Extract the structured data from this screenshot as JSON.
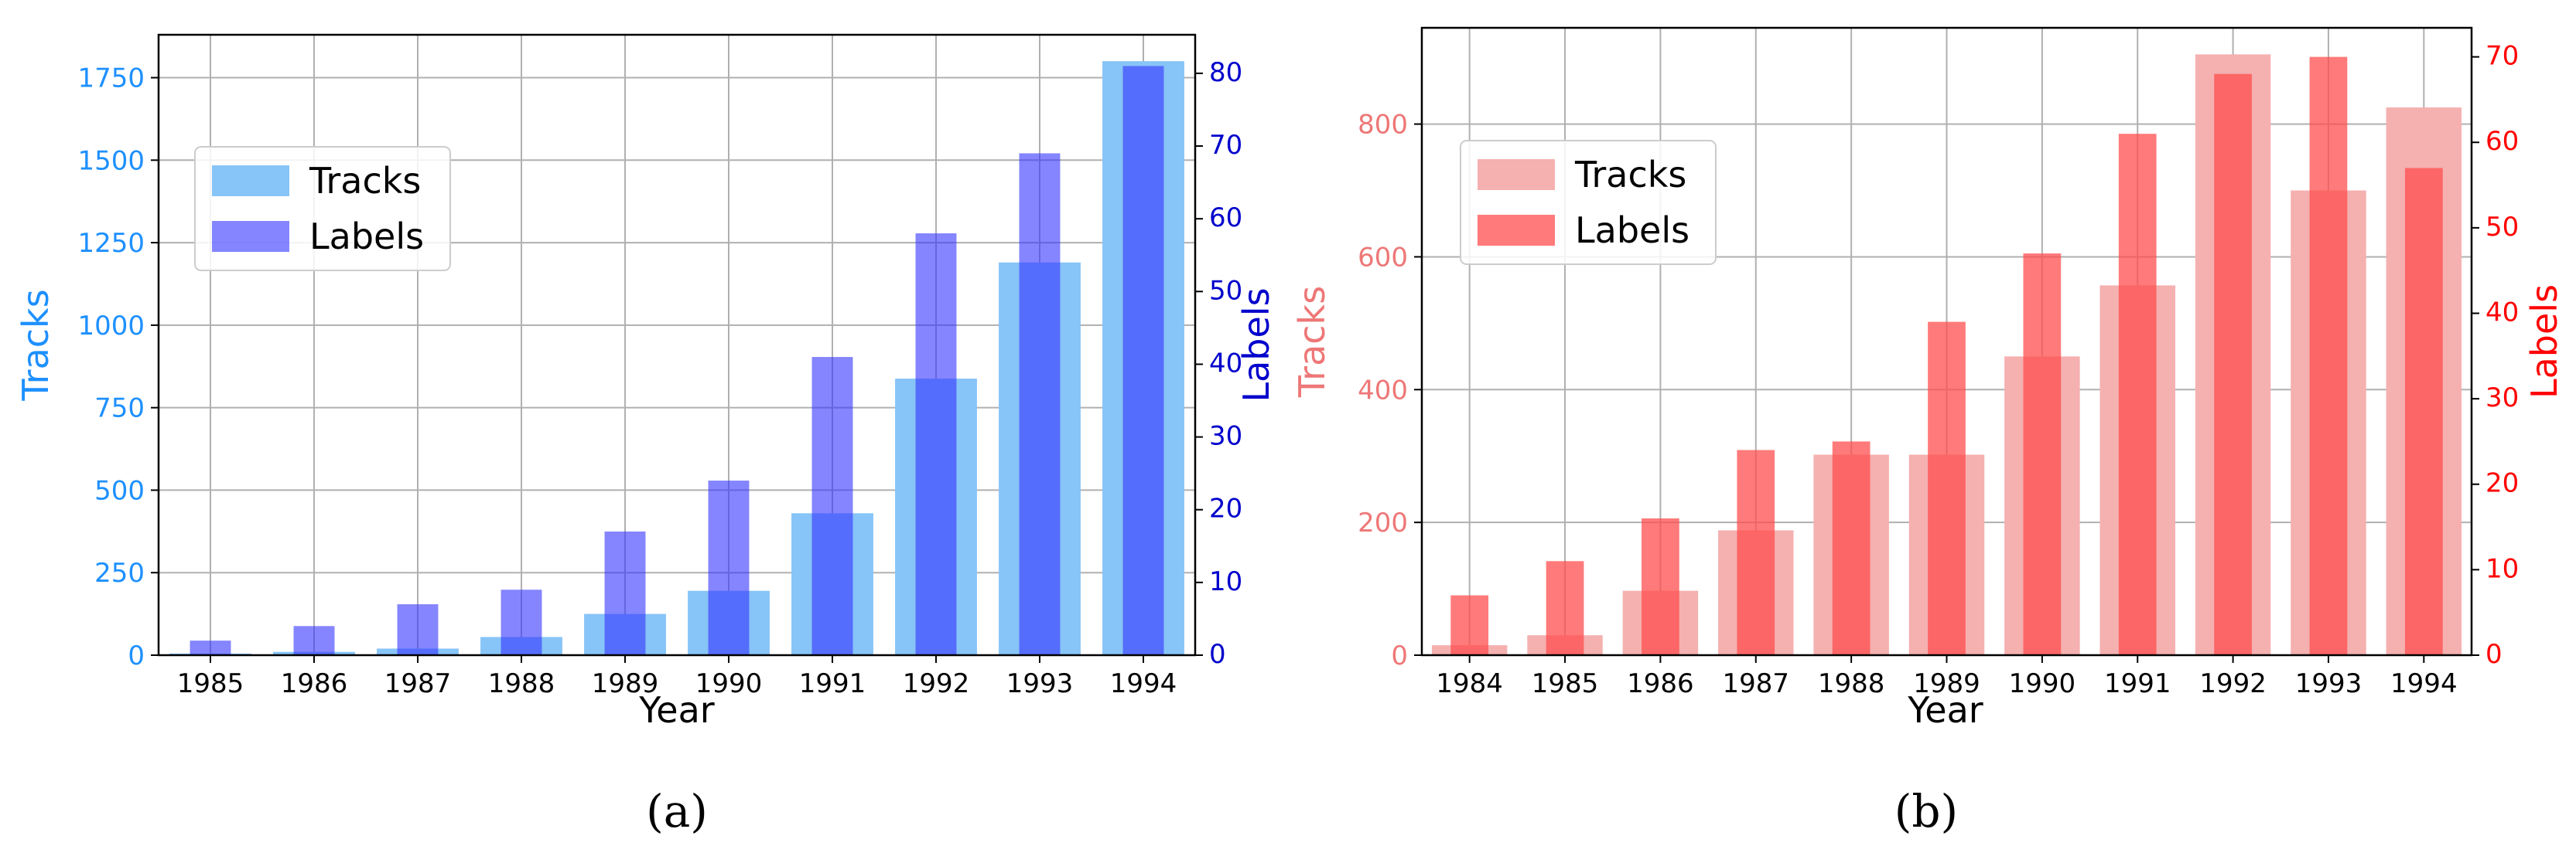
{
  "chart_data": [
    {
      "type": "bar",
      "caption": "(a)",
      "categories": [
        "1985",
        "1986",
        "1987",
        "1988",
        "1989",
        "1990",
        "1991",
        "1992",
        "1993",
        "1994"
      ],
      "series": [
        {
          "name": "Tracks",
          "axis": "left",
          "color": "#87c4f7",
          "values": [
            5,
            10,
            20,
            55,
            125,
            195,
            430,
            838,
            1190,
            1800
          ]
        },
        {
          "name": "Labels",
          "axis": "right",
          "color": "#3333ff",
          "alpha": 0.6,
          "values": [
            2,
            4,
            7,
            9,
            17,
            24,
            41,
            58,
            69,
            81
          ]
        }
      ],
      "xlabel": "Year",
      "ylabel_left": "Tracks",
      "ylabel_right": "Labels",
      "ylim_left": [
        0,
        1880
      ],
      "ylim_right": [
        0,
        85.3
      ],
      "yticks_left": [
        "0",
        "250",
        "500",
        "750",
        "1000",
        "1250",
        "1500",
        "1750"
      ],
      "yticks_right": [
        "0",
        "10",
        "20",
        "30",
        "40",
        "50",
        "60",
        "70",
        "80"
      ],
      "left_axis_color": "#1e90ff",
      "right_axis_color": "#0000cc",
      "legend": {
        "placement": "upper-left",
        "entries": [
          "Tracks",
          "Labels"
        ]
      },
      "grid": true
    },
    {
      "type": "bar",
      "caption": "(b)",
      "categories": [
        "1984",
        "1985",
        "1986",
        "1987",
        "1988",
        "1989",
        "1990",
        "1991",
        "1992",
        "1993",
        "1994"
      ],
      "series": [
        {
          "name": "Tracks",
          "axis": "left",
          "color": "#f5b0b0",
          "values": [
            15,
            30,
            97,
            188,
            302,
            302,
            450,
            557,
            905,
            700,
            825
          ]
        },
        {
          "name": "Labels",
          "axis": "right",
          "color": "#ff4d4d",
          "alpha": 0.75,
          "values": [
            7,
            11,
            16,
            24,
            25,
            39,
            47,
            61,
            68,
            70,
            57
          ]
        }
      ],
      "xlabel": "Year",
      "ylabel_left": "Tracks",
      "ylabel_right": "Labels",
      "ylim_left": [
        0,
        945
      ],
      "ylim_right": [
        0,
        73.4
      ],
      "yticks_left": [
        "0",
        "200",
        "400",
        "600",
        "800"
      ],
      "yticks_right": [
        "0",
        "10",
        "20",
        "30",
        "40",
        "50",
        "60",
        "70"
      ],
      "left_axis_color": "#ee7777",
      "right_axis_color": "#ff0000",
      "legend": {
        "placement": "upper-left",
        "entries": [
          "Tracks",
          "Labels"
        ]
      },
      "grid": true
    }
  ]
}
